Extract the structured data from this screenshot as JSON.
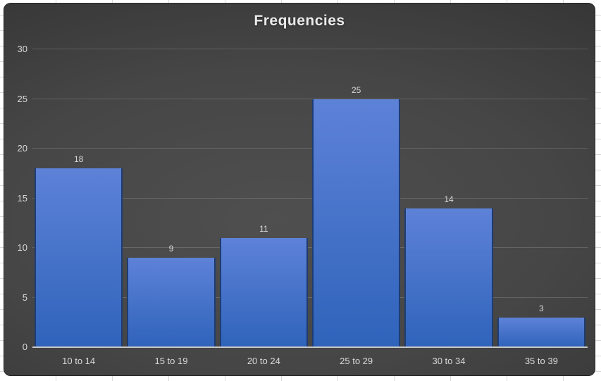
{
  "chart_data": {
    "type": "bar",
    "title": "Frequencies",
    "categories": [
      "10 to 14",
      "15 to 19",
      "20 to 24",
      "25 to 29",
      "30 to 34",
      "35 to 39"
    ],
    "values": [
      18,
      9,
      11,
      25,
      14,
      3
    ],
    "data_labels": [
      "18",
      "9",
      "11",
      "25",
      "14",
      "3"
    ],
    "xlabel": "",
    "ylabel": "",
    "ylim": [
      0,
      30
    ],
    "yticks": [
      "0",
      "5",
      "10",
      "15",
      "20",
      "25",
      "30"
    ],
    "grid": true,
    "legend": "none",
    "colors": {
      "bar_top": "#5d82d8",
      "bar_bottom": "#2f63ba",
      "bar_border": "#1e3c72",
      "plot_bg_center": "#4f4f4f",
      "plot_bg_edge": "#2c2c2c",
      "gridline": "#5f5f5f",
      "axis_line": "#c9c9c9",
      "text": "#d9d9d9",
      "title_text": "#eaeaea",
      "margin_bg": "#ffffff"
    }
  }
}
